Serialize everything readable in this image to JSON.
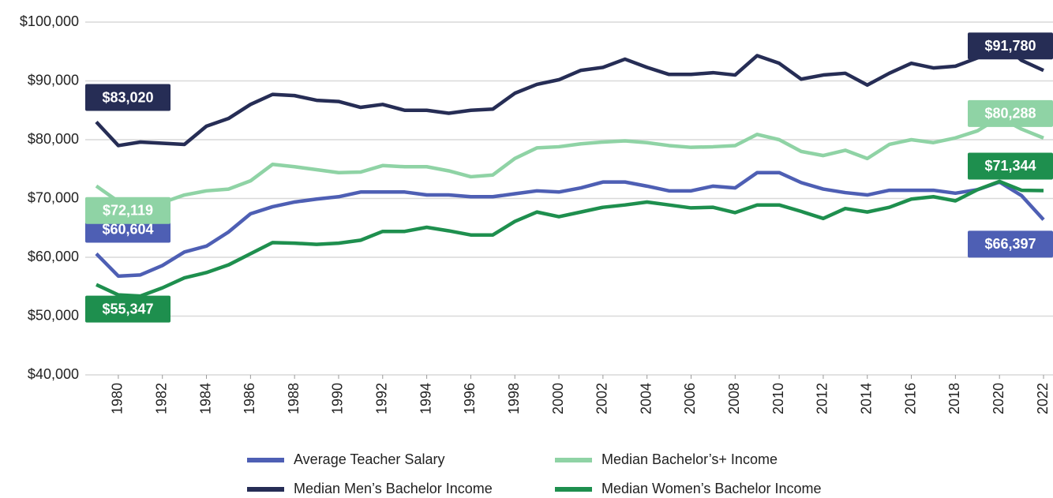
{
  "chart_data": {
    "type": "line",
    "x": [
      1979,
      1980,
      1981,
      1982,
      1983,
      1984,
      1985,
      1986,
      1987,
      1988,
      1989,
      1990,
      1991,
      1992,
      1993,
      1994,
      1995,
      1996,
      1997,
      1998,
      1999,
      2000,
      2001,
      2002,
      2003,
      2004,
      2005,
      2006,
      2007,
      2008,
      2009,
      2010,
      2011,
      2012,
      2013,
      2014,
      2015,
      2016,
      2017,
      2018,
      2019,
      2020,
      2021,
      2022
    ],
    "xlim": [
      1979,
      2022
    ],
    "xticks": [
      1980,
      1982,
      1984,
      1986,
      1988,
      1990,
      1992,
      1994,
      1996,
      1998,
      2000,
      2002,
      2004,
      2006,
      2008,
      2010,
      2012,
      2014,
      2016,
      2018,
      2020,
      2022
    ],
    "ylim": [
      40000,
      100000
    ],
    "yticks": [
      {
        "value": 40000,
        "label": "$40,000"
      },
      {
        "value": 50000,
        "label": "$50,000"
      },
      {
        "value": 60000,
        "label": "$60,000"
      },
      {
        "value": 70000,
        "label": "$70,000"
      },
      {
        "value": 80000,
        "label": "$80,000"
      },
      {
        "value": 90000,
        "label": "$90,000"
      },
      {
        "value": 100000,
        "label": "$100,000"
      }
    ],
    "grid": true,
    "legend": "bottom",
    "series": [
      {
        "name": "Average Teacher Salary",
        "color": "#4e5fb4",
        "values": [
          60604,
          56800,
          57000,
          58600,
          60900,
          61900,
          64300,
          67400,
          68600,
          69400,
          69900,
          70300,
          71100,
          71100,
          71100,
          70600,
          70600,
          70300,
          70300,
          70800,
          71300,
          71100,
          71800,
          72800,
          72800,
          72100,
          71300,
          71300,
          72100,
          71800,
          74400,
          74400,
          72700,
          71600,
          71000,
          70600,
          71400,
          71400,
          71400,
          70900,
          71500,
          72800,
          70500,
          66397
        ],
        "value_labels": [
          "$60,604",
          null,
          null,
          null,
          null,
          null,
          null,
          null,
          null,
          null,
          null,
          null,
          null,
          null,
          null,
          null,
          null,
          null,
          null,
          null,
          null,
          null,
          null,
          null,
          null,
          null,
          null,
          null,
          null,
          null,
          null,
          null,
          null,
          null,
          null,
          null,
          null,
          null,
          null,
          null,
          null,
          null,
          null,
          "$66,397"
        ]
      },
      {
        "name": "Median Bachelor’s+ Income",
        "color": "#8fd3a5",
        "values": [
          72119,
          69500,
          68200,
          69300,
          70600,
          71300,
          71600,
          73000,
          75800,
          75400,
          74900,
          74400,
          74500,
          75600,
          75400,
          75400,
          74700,
          73700,
          74000,
          76800,
          78600,
          78800,
          79300,
          79600,
          79800,
          79500,
          79000,
          78700,
          78800,
          79000,
          80900,
          80000,
          78000,
          77300,
          78200,
          76800,
          79200,
          80000,
          79500,
          80300,
          81500,
          83800,
          81800,
          80288
        ],
        "value_labels": [
          "$72,119",
          null,
          null,
          null,
          null,
          null,
          null,
          null,
          null,
          null,
          null,
          null,
          null,
          null,
          null,
          null,
          null,
          null,
          null,
          null,
          null,
          null,
          null,
          null,
          null,
          null,
          null,
          null,
          null,
          null,
          null,
          null,
          null,
          null,
          null,
          null,
          null,
          null,
          null,
          null,
          null,
          null,
          null,
          "$80,288"
        ]
      },
      {
        "name": "Median Men’s Bachelor Income",
        "color": "#262d55",
        "values": [
          83020,
          79000,
          79600,
          79400,
          79200,
          82300,
          83600,
          86000,
          87700,
          87500,
          86700,
          86500,
          85500,
          86000,
          85000,
          85000,
          84500,
          85000,
          85200,
          87900,
          89400,
          90200,
          91800,
          92300,
          93700,
          92300,
          91100,
          91100,
          91400,
          91000,
          94300,
          93000,
          90300,
          91000,
          91300,
          89300,
          91300,
          93000,
          92200,
          92500,
          93900,
          96800,
          93500,
          91780
        ],
        "value_labels": [
          "$83,020",
          null,
          null,
          null,
          null,
          null,
          null,
          null,
          null,
          null,
          null,
          null,
          null,
          null,
          null,
          null,
          null,
          null,
          null,
          null,
          null,
          null,
          null,
          null,
          null,
          null,
          null,
          null,
          null,
          null,
          null,
          null,
          null,
          null,
          null,
          null,
          null,
          null,
          null,
          null,
          null,
          null,
          null,
          "$91,780"
        ]
      },
      {
        "name": "Median Women’s Bachelor Income",
        "color": "#1e8f4e",
        "values": [
          55347,
          53600,
          53400,
          54800,
          56500,
          57400,
          58700,
          60600,
          62500,
          62400,
          62200,
          62400,
          62900,
          64400,
          64400,
          65100,
          64500,
          63800,
          63800,
          66100,
          67700,
          66900,
          67700,
          68500,
          68900,
          69400,
          68900,
          68400,
          68500,
          67600,
          68900,
          68900,
          67800,
          66600,
          68300,
          67700,
          68500,
          69900,
          70300,
          69600,
          71500,
          72900,
          71400,
          71344
        ],
        "value_labels": [
          "$55,347",
          null,
          null,
          null,
          null,
          null,
          null,
          null,
          null,
          null,
          null,
          null,
          null,
          null,
          null,
          null,
          null,
          null,
          null,
          null,
          null,
          null,
          null,
          null,
          null,
          null,
          null,
          null,
          null,
          null,
          null,
          null,
          null,
          null,
          null,
          null,
          null,
          null,
          null,
          null,
          null,
          null,
          null,
          "$71,344"
        ]
      }
    ]
  }
}
